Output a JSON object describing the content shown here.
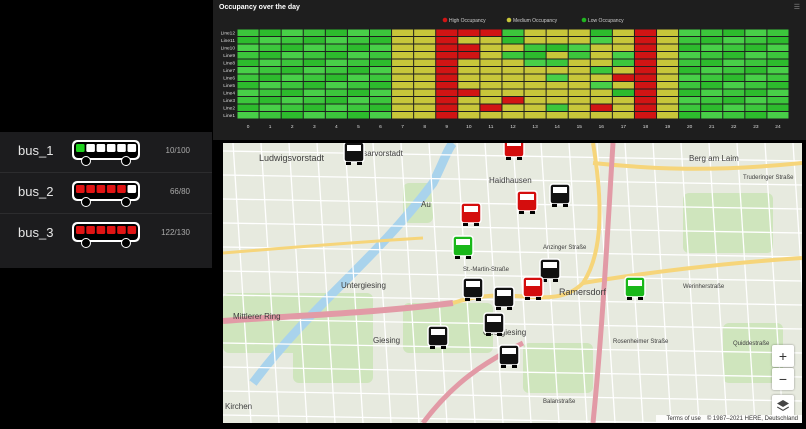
{
  "buses": [
    {
      "name": "bus_1",
      "count": "10/100",
      "status": "low",
      "filled": 1
    },
    {
      "name": "bus_2",
      "count": "66/80",
      "status": "high",
      "filled": 5
    },
    {
      "name": "bus_3",
      "count": "122/130",
      "status": "high",
      "filled": 6
    }
  ],
  "chart": {
    "title": "Occupancy over the day",
    "menu_icon": "menu-lines-icon",
    "legend": [
      {
        "label": "High Occupancy",
        "color": "#d11414"
      },
      {
        "label": "Medium Occupancy",
        "color": "#c8c63a"
      },
      {
        "label": "Low Occupancy",
        "color": "#1fb51f"
      }
    ]
  },
  "chart_data": {
    "type": "heatmap",
    "title": "Occupancy over the day",
    "y_categories": [
      "Line12",
      "Line11",
      "Line10",
      "Line9",
      "Line8",
      "Line7",
      "Line6",
      "Line5",
      "Line4",
      "Line3",
      "Line2",
      "Line1"
    ],
    "x_categories": [
      "0",
      "1",
      "2",
      "3",
      "4",
      "5",
      "6",
      "7",
      "8",
      "9",
      "10",
      "11",
      "12",
      "13",
      "14",
      "15",
      "16",
      "17",
      "18",
      "19",
      "20",
      "21",
      "22",
      "23",
      "24"
    ],
    "levels_legend": [
      "High Occupancy",
      "Medium Occupancy",
      "Low Occupancy"
    ],
    "values": [
      "LLLLLLLMMHHHLMMMLMHMLLLLL",
      "LLLLLLLMMHMMLMMMLMHMLLLLL",
      "LLLLLLLMMHHMMLLLMMHMLLLLL",
      "LLLLLLLMMHHMLLMLMLHMLLLLL",
      "LLLLLLLMMHMMMLLMMLHMLLLLL",
      "LLLLLLLMMHMMMMMMLMHMLLLLL",
      "LLLLLLLMMHMMMMLMMHHMLLLLL",
      "LLLLLLLMMHMMMMMMLMHMLLLLL",
      "LLLLLLLMMHHMMMMMMLHMLLLLL",
      "LLLLLLLMMHMMHMMMMMHMLLLLL",
      "LLLLLLLMMHMHMMLMHMHMLLLLL",
      "LLLLLLLMMHMMMMMMMMHMLLLLL"
    ]
  },
  "map": {
    "labels": [
      "Ludwigsvorstadt",
      "Isarvorstadt",
      "Haidhausen",
      "Berg am Laim",
      "Au",
      "Untergiesing",
      "Ramersdorf",
      "Giesing",
      "Obergiesing",
      "Mittlerer Ring",
      "Quiddestraße",
      "Balanstraße",
      "Anzinger Straße",
      "Rosenheimer Straße",
      "St.-Martin-Straße",
      "Werinherstraße",
      "Truderinger Straße",
      "Kirchen"
    ],
    "zoom_in": "+",
    "zoom_out": "−",
    "layers_icon": "layers-icon",
    "attribution_terms": "Terms of use",
    "attribution_copy": "© 1987–2021 HERE, Deutschland",
    "markers": [
      {
        "status": "black"
      },
      {
        "status": "red"
      },
      {
        "status": "black"
      },
      {
        "status": "red"
      },
      {
        "status": "red"
      },
      {
        "status": "green"
      },
      {
        "status": "black"
      },
      {
        "status": "red"
      },
      {
        "status": "black"
      },
      {
        "status": "black"
      },
      {
        "status": "black"
      },
      {
        "status": "black"
      },
      {
        "status": "black"
      },
      {
        "status": "green"
      }
    ]
  }
}
